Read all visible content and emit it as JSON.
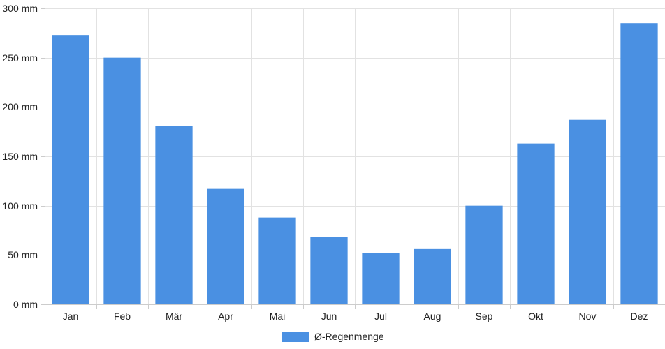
{
  "chart_data": {
    "type": "bar",
    "title": "",
    "xlabel": "",
    "ylabel": "",
    "categories": [
      "Jan",
      "Feb",
      "Mär",
      "Apr",
      "Mai",
      "Jun",
      "Jul",
      "Aug",
      "Sep",
      "Okt",
      "Nov",
      "Dez"
    ],
    "series": [
      {
        "name": "Ø-Regenmenge",
        "color": "#4a90e2",
        "values": [
          273,
          250,
          181,
          117,
          88,
          68,
          52,
          56,
          100,
          163,
          187,
          285
        ]
      }
    ],
    "ylim": [
      0,
      300
    ],
    "y_ticks": [
      0,
      50,
      100,
      150,
      200,
      250,
      300
    ],
    "y_tick_labels": [
      "0 mm",
      "50 mm",
      "100 mm",
      "150 mm",
      "200 mm",
      "250 mm",
      "300 mm"
    ],
    "grid": true,
    "legend_position": "bottom-center"
  }
}
